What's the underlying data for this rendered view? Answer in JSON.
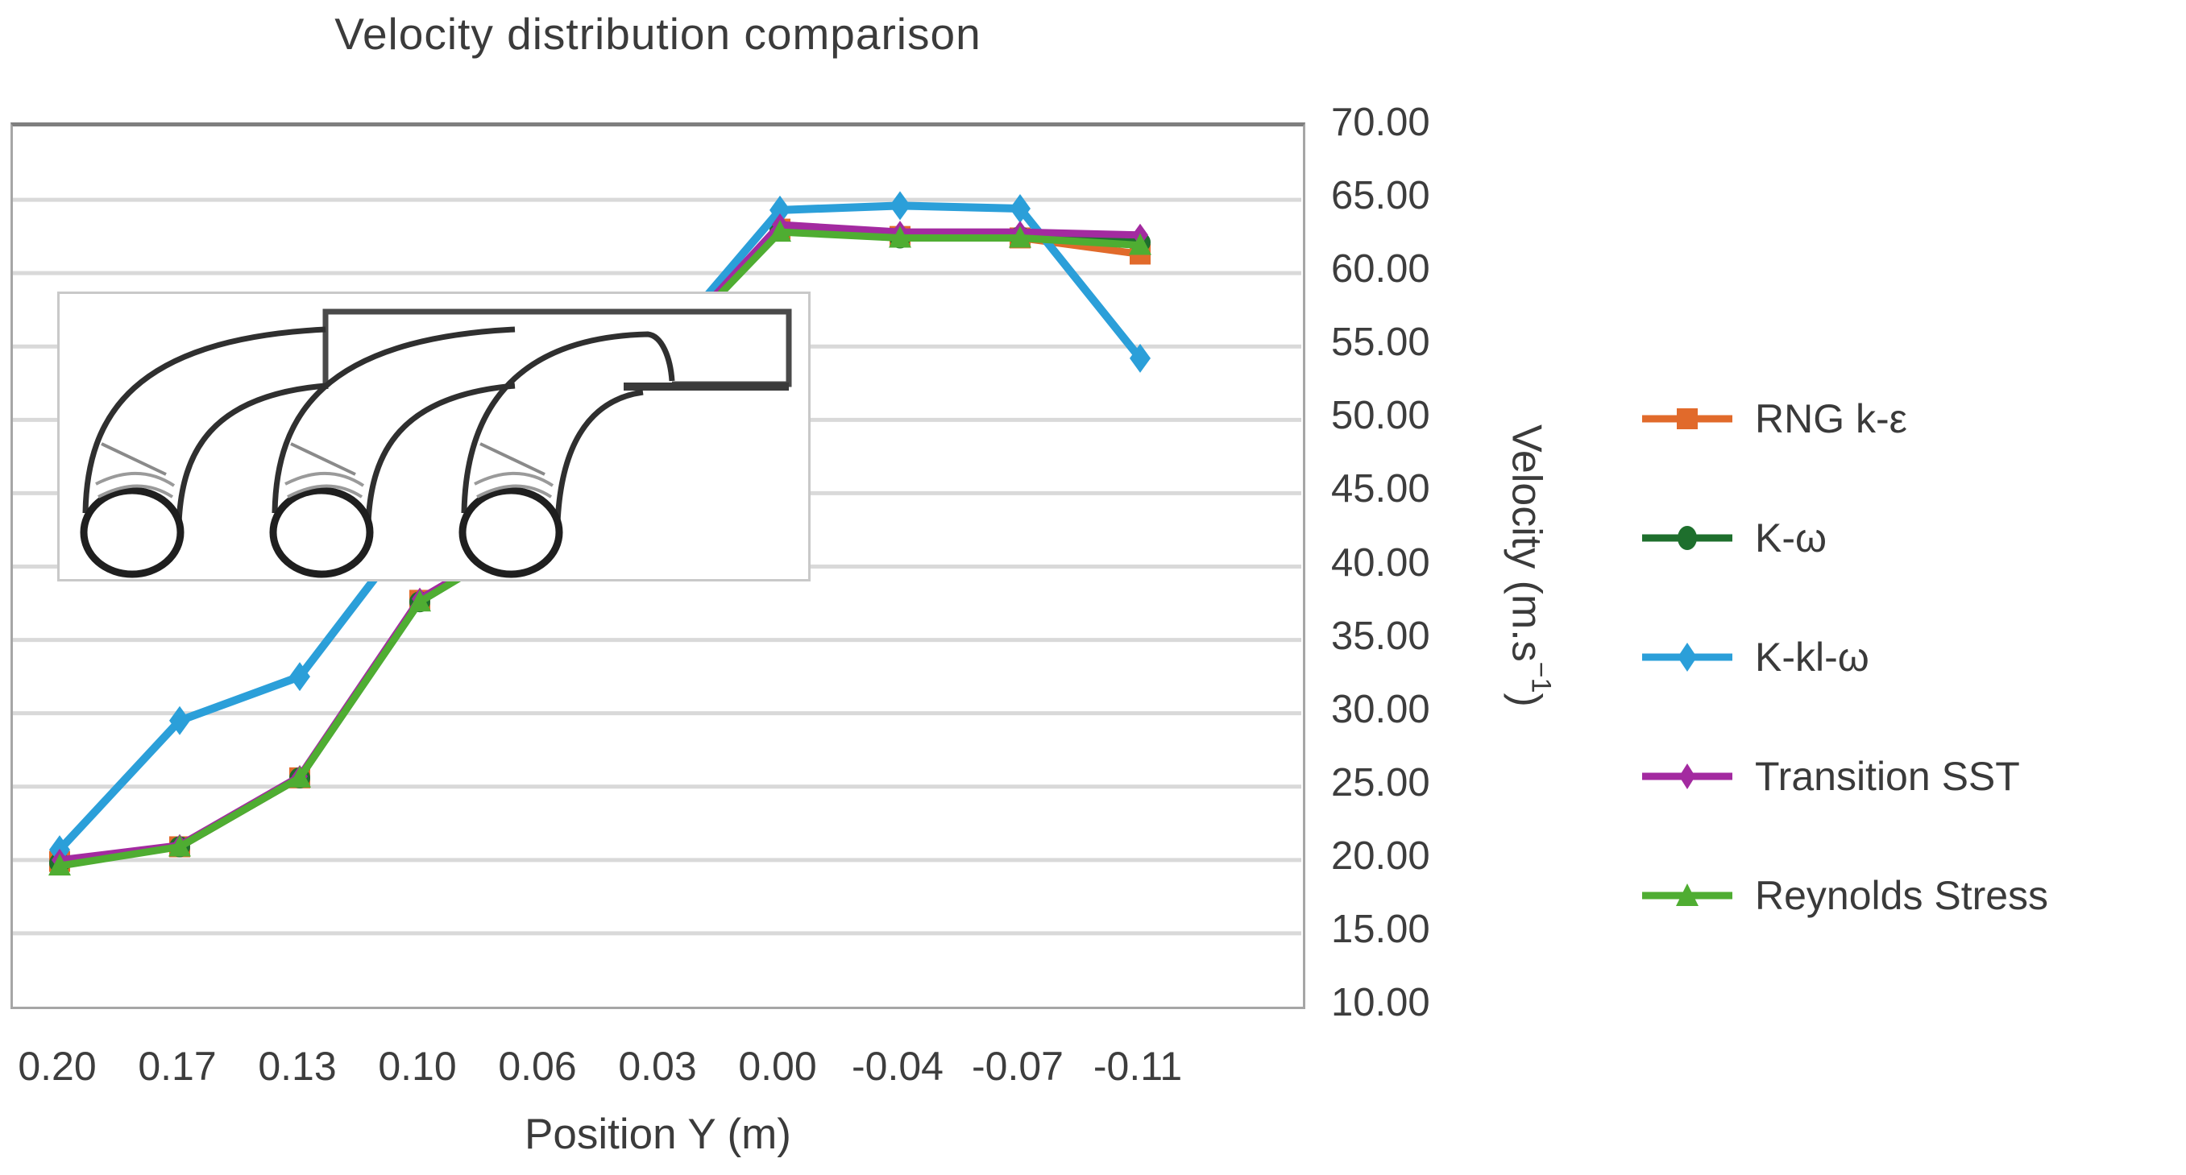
{
  "title": "Velocity distribution comparison",
  "x_axis": {
    "title": "Position Y (m)",
    "tick_labels": [
      "0.20",
      "0.17",
      "0.13",
      "0.10",
      "0.06",
      "0.03",
      "0.00",
      "-0.04",
      "-0.07",
      "-0.11"
    ]
  },
  "y_axis": {
    "title_pre": "Velocity (m.s",
    "title_sup": "−1",
    "title_post": ")",
    "tick_labels": [
      "70.00",
      "65.00",
      "60.00",
      "55.00",
      "50.00",
      "45.00",
      "40.00",
      "35.00",
      "30.00",
      "25.00",
      "20.00",
      "15.00",
      "10.00"
    ],
    "min": 10,
    "max": 70,
    "step": 5
  },
  "inset_icon": "intake-pipes-schematic",
  "colors": {
    "grid": "#D9D9D9",
    "plot_border": "#A6A6A6",
    "plot_border_top": "#7F7F7F",
    "text": "#3B3B3B"
  },
  "chart_data": {
    "type": "line",
    "title": "Velocity distribution comparison",
    "xlabel": "Position Y (m)",
    "ylabel": "Velocity (m.s-1)",
    "x": [
      0.2,
      0.17,
      0.13,
      0.1,
      0.06,
      0.03,
      0.0,
      -0.04,
      -0.07,
      -0.11
    ],
    "categories": [
      "0.20",
      "0.17",
      "0.13",
      "0.10",
      "0.06",
      "0.03",
      "0.00",
      "-0.04",
      "-0.07",
      "-0.11"
    ],
    "ylim": [
      10,
      70
    ],
    "ytick_step": 5,
    "grid": "horizontal",
    "legend_position": "right",
    "series": [
      {
        "name": "RNG k-ε",
        "color": "#E16A2B",
        "marker": "square",
        "line_width": 9,
        "values": [
          19.9,
          20.9,
          25.6,
          37.7,
          42.5,
          54.3,
          63.0,
          62.5,
          62.4,
          61.3
        ]
      },
      {
        "name": "K-ω",
        "color": "#1E6F2D",
        "marker": "circle",
        "line_width": 9,
        "values": [
          19.8,
          20.9,
          25.6,
          37.6,
          42.5,
          54.3,
          62.9,
          62.4,
          62.5,
          62.1
        ]
      },
      {
        "name": "K-kl-ω",
        "color": "#2B9FD9",
        "marker": "diamond",
        "line_width": 10,
        "values": [
          20.7,
          29.5,
          32.5,
          43.2,
          47.0,
          54.7,
          64.3,
          64.6,
          64.4,
          54.2
        ]
      },
      {
        "name": "Transition SST",
        "color": "#A32AA0",
        "marker": "diamond-small",
        "line_width": 9,
        "values": [
          20.0,
          21.0,
          25.7,
          37.8,
          42.6,
          54.4,
          63.3,
          62.8,
          62.8,
          62.6
        ]
      },
      {
        "name": "Reynolds Stress",
        "color": "#4FAD32",
        "marker": "triangle",
        "line_width": 9,
        "values": [
          19.6,
          20.9,
          25.6,
          37.6,
          42.5,
          54.3,
          62.8,
          62.4,
          62.4,
          61.9
        ]
      }
    ]
  }
}
